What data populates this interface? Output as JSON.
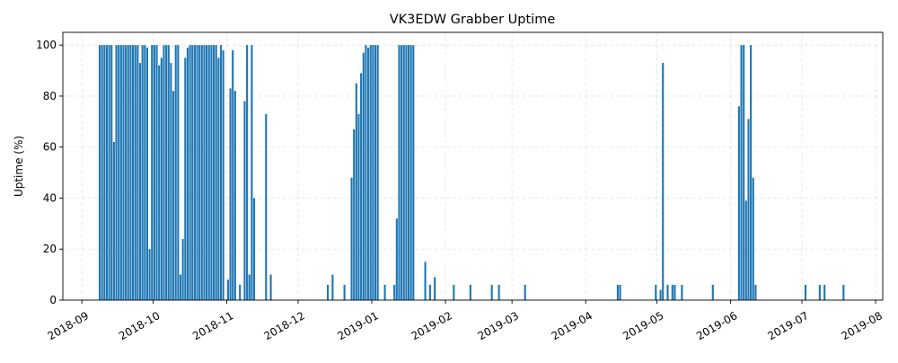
{
  "chart_data": {
    "type": "bar",
    "title": "VK3EDW Grabber Uptime",
    "xlabel": "",
    "ylabel": "Uptime (%)",
    "ylim": [
      0,
      105
    ],
    "xlim": [
      "2018-08-24",
      "2019-08-04"
    ],
    "grid": true,
    "y_ticks": [
      0,
      20,
      40,
      60,
      80,
      100
    ],
    "x_ticks": [
      "2018-09",
      "2018-10",
      "2018-11",
      "2018-12",
      "2019-01",
      "2019-02",
      "2019-03",
      "2019-04",
      "2019-05",
      "2019-06",
      "2019-07",
      "2019-08"
    ],
    "x": [
      "2018-09-08",
      "2018-09-09",
      "2018-09-10",
      "2018-09-11",
      "2018-09-12",
      "2018-09-13",
      "2018-09-14",
      "2018-09-15",
      "2018-09-16",
      "2018-09-17",
      "2018-09-18",
      "2018-09-19",
      "2018-09-20",
      "2018-09-21",
      "2018-09-22",
      "2018-09-23",
      "2018-09-24",
      "2018-09-25",
      "2018-09-26",
      "2018-09-27",
      "2018-09-28",
      "2018-09-29",
      "2018-09-30",
      "2018-10-01",
      "2018-10-02",
      "2018-10-03",
      "2018-10-04",
      "2018-10-05",
      "2018-10-06",
      "2018-10-07",
      "2018-10-08",
      "2018-10-09",
      "2018-10-10",
      "2018-10-11",
      "2018-10-12",
      "2018-10-13",
      "2018-10-14",
      "2018-10-15",
      "2018-10-16",
      "2018-10-17",
      "2018-10-18",
      "2018-10-19",
      "2018-10-20",
      "2018-10-21",
      "2018-10-22",
      "2018-10-23",
      "2018-10-24",
      "2018-10-25",
      "2018-10-26",
      "2018-10-27",
      "2018-10-28",
      "2018-10-29",
      "2018-10-30",
      "2018-11-01",
      "2018-11-02",
      "2018-11-03",
      "2018-11-04",
      "2018-11-06",
      "2018-11-08",
      "2018-11-09",
      "2018-11-10",
      "2018-11-11",
      "2018-11-12",
      "2018-11-17",
      "2018-11-19",
      "2018-12-13",
      "2018-12-15",
      "2018-12-20",
      "2018-12-23",
      "2018-12-24",
      "2018-12-25",
      "2018-12-26",
      "2018-12-27",
      "2018-12-28",
      "2018-12-29",
      "2018-12-30",
      "2018-12-31",
      "2019-01-01",
      "2019-01-02",
      "2019-01-03",
      "2019-01-06",
      "2019-01-10",
      "2019-01-11",
      "2019-01-12",
      "2019-01-13",
      "2019-01-14",
      "2019-01-15",
      "2019-01-16",
      "2019-01-17",
      "2019-01-18",
      "2019-01-23",
      "2019-01-25",
      "2019-01-27",
      "2019-02-04",
      "2019-02-11",
      "2019-02-20",
      "2019-02-23",
      "2019-03-06",
      "2019-04-14",
      "2019-04-15",
      "2019-04-30",
      "2019-05-02",
      "2019-05-03",
      "2019-05-05",
      "2019-05-07",
      "2019-05-08",
      "2019-05-11",
      "2019-05-24",
      "2019-06-04",
      "2019-06-05",
      "2019-06-06",
      "2019-06-07",
      "2019-06-08",
      "2019-06-09",
      "2019-06-10",
      "2019-06-11",
      "2019-07-02",
      "2019-07-08",
      "2019-07-10",
      "2019-07-18"
    ],
    "values": [
      100,
      100,
      100,
      100,
      100,
      100,
      62,
      100,
      100,
      100,
      100,
      100,
      100,
      100,
      100,
      100,
      100,
      93,
      100,
      100,
      99,
      20,
      100,
      100,
      100,
      92,
      95,
      100,
      100,
      100,
      93,
      82,
      100,
      100,
      10,
      24,
      95,
      99,
      100,
      100,
      100,
      100,
      100,
      100,
      100,
      100,
      100,
      100,
      100,
      100,
      95,
      100,
      98,
      8,
      83,
      98,
      82,
      6,
      78,
      100,
      10,
      100,
      40,
      73,
      10,
      6,
      10,
      6,
      48,
      67,
      85,
      73,
      89,
      97,
      100,
      99,
      100,
      100,
      100,
      100,
      6,
      6,
      32,
      100,
      100,
      100,
      100,
      100,
      100,
      100,
      15,
      6,
      9,
      6,
      6,
      6,
      6,
      6,
      6,
      6,
      6,
      4,
      93,
      6,
      6,
      6,
      6,
      6,
      76,
      100,
      100,
      39,
      71,
      100,
      48,
      6,
      6,
      6,
      6,
      6
    ]
  }
}
